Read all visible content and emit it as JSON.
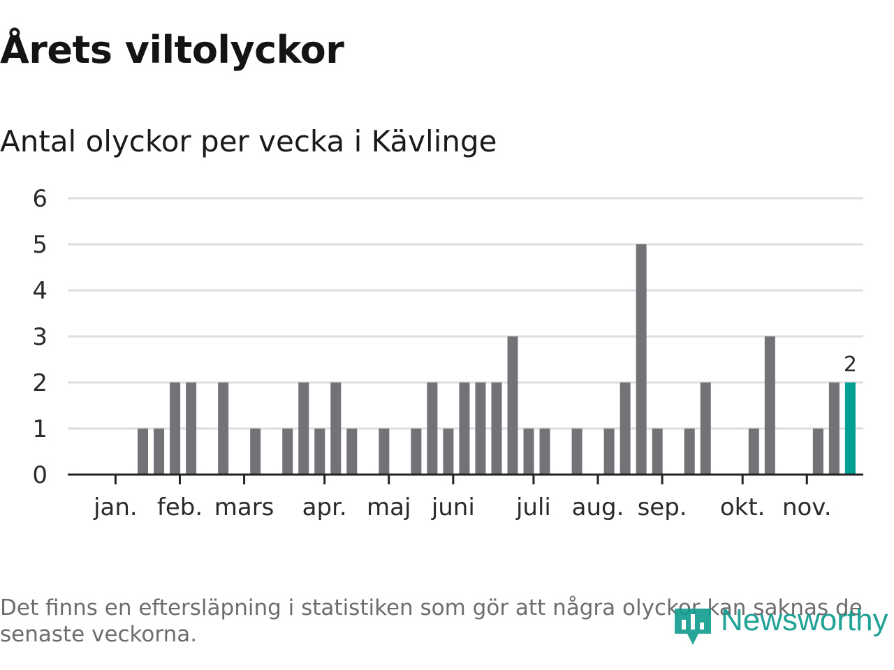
{
  "title": "Årets viltolyckor",
  "subtitle": "Antal olyckor per vecka i Kävlinge",
  "footnote": "Det finns en eftersläpning i statistiken som gör att några olyckor kan saknas de senaste veckorna.",
  "brand": {
    "name": "Newsworthy",
    "color": "#0f9b8e"
  },
  "colors": {
    "bar": "#737277",
    "highlight": "#009e93",
    "grid": "#dedede",
    "axis": "#222222",
    "tick_text": "#2a2a2a"
  },
  "chart_data": {
    "type": "bar",
    "title": "Antal olyckor per vecka i Kävlinge",
    "xlabel": "",
    "ylabel": "",
    "ylim": [
      0,
      6
    ],
    "yticks": [
      0,
      1,
      2,
      3,
      4,
      5,
      6
    ],
    "grid": true,
    "weeks": [
      1,
      2,
      3,
      4,
      5,
      6,
      7,
      8,
      9,
      10,
      11,
      12,
      13,
      14,
      15,
      16,
      17,
      18,
      19,
      20,
      21,
      22,
      23,
      24,
      25,
      26,
      27,
      28,
      29,
      30,
      31,
      32,
      33,
      34,
      35,
      36,
      37,
      38,
      39,
      40,
      41,
      42,
      43,
      44,
      45,
      46,
      47
    ],
    "values": [
      0,
      0,
      1,
      1,
      2,
      2,
      0,
      2,
      0,
      1,
      0,
      1,
      2,
      1,
      2,
      1,
      0,
      1,
      0,
      1,
      2,
      1,
      2,
      2,
      2,
      3,
      1,
      1,
      0,
      1,
      0,
      1,
      2,
      5,
      1,
      0,
      1,
      2,
      0,
      0,
      1,
      3,
      0,
      0,
      1,
      2,
      2
    ],
    "highlight_index": 46,
    "data_labels": [
      {
        "index": 46,
        "text": "2"
      }
    ],
    "month_ticks": [
      {
        "label": "jan.",
        "week": 1.3
      },
      {
        "label": "feb.",
        "week": 5.3
      },
      {
        "label": "mars",
        "week": 9.3
      },
      {
        "label": "apr.",
        "week": 14.3
      },
      {
        "label": "maj",
        "week": 18.3
      },
      {
        "label": "juni",
        "week": 22.3
      },
      {
        "label": "juli",
        "week": 27.3
      },
      {
        "label": "aug.",
        "week": 31.3
      },
      {
        "label": "sep.",
        "week": 35.3
      },
      {
        "label": "okt.",
        "week": 40.3
      },
      {
        "label": "nov.",
        "week": 44.3
      }
    ]
  }
}
